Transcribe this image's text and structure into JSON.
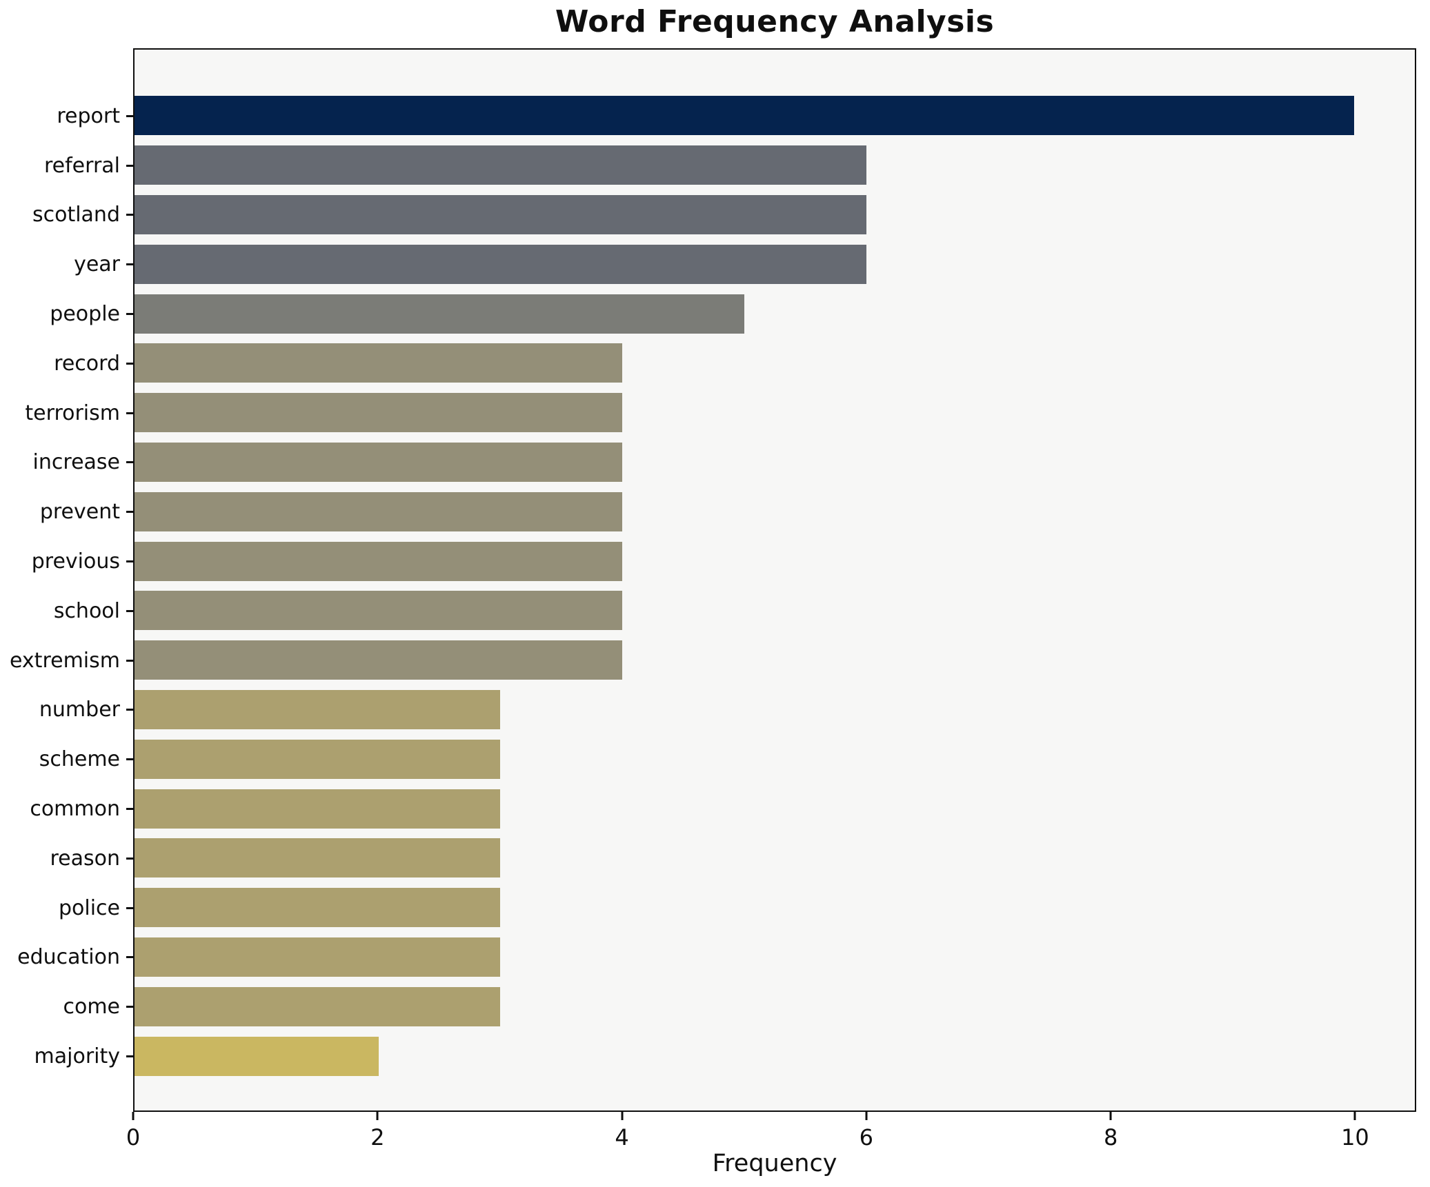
{
  "chart_data": {
    "type": "bar",
    "orientation": "horizontal",
    "title": "Word Frequency Analysis",
    "xlabel": "Frequency",
    "ylabel": "",
    "categories": [
      "report",
      "referral",
      "scotland",
      "year",
      "people",
      "record",
      "terrorism",
      "increase",
      "prevent",
      "previous",
      "school",
      "extremism",
      "number",
      "scheme",
      "common",
      "reason",
      "police",
      "education",
      "come",
      "majority"
    ],
    "values": [
      10,
      6,
      6,
      6,
      5,
      4,
      4,
      4,
      4,
      4,
      4,
      4,
      3,
      3,
      3,
      3,
      3,
      3,
      3,
      2
    ],
    "xlim": [
      0,
      10.5
    ],
    "xticks": [
      0,
      2,
      4,
      6,
      8,
      10
    ],
    "grid": false,
    "legend": null,
    "bar_height_fraction": 0.8,
    "value_colors": {
      "10": "#05234e",
      "6": "#666a72",
      "5": "#7b7c77",
      "4": "#948f78",
      "3": "#aca06f",
      "2": "#cab761"
    }
  },
  "colors": {
    "figure_bg": "#ffffff",
    "plot_bg": "#f7f7f6",
    "spine": "#0f0f0f",
    "text": "#0f0f0f"
  }
}
